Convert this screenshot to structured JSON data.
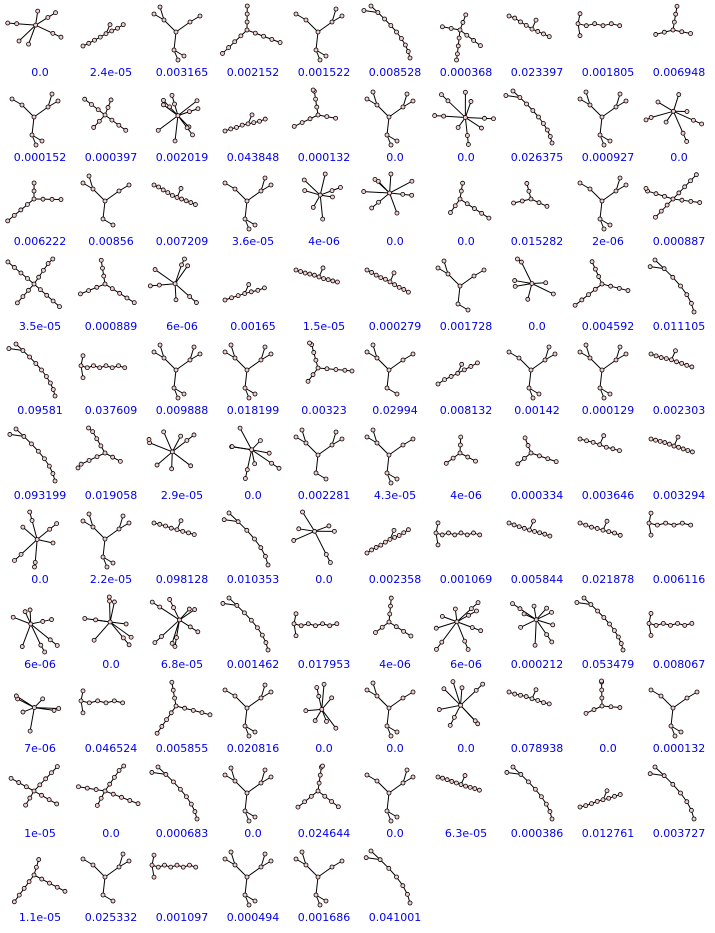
{
  "colors": {
    "label": "#0000ee",
    "node_fill": "#f4cccc",
    "edge": "#000000"
  },
  "cells": [
    {
      "label": "0.0",
      "shape": "star"
    },
    {
      "label": "2.4e-05",
      "shape": "path"
    },
    {
      "label": "0.003165",
      "shape": "tree"
    },
    {
      "label": "0.002152",
      "shape": "branch"
    },
    {
      "label": "0.001522",
      "shape": "tree"
    },
    {
      "label": "0.008528",
      "shape": "curve"
    },
    {
      "label": "0.000368",
      "shape": "branch"
    },
    {
      "label": "0.023397",
      "shape": "path"
    },
    {
      "label": "0.001805",
      "shape": "ladder"
    },
    {
      "label": "0.006948",
      "shape": "branch"
    },
    {
      "label": "0.000152",
      "shape": "tree"
    },
    {
      "label": "0.000397",
      "shape": "branch"
    },
    {
      "label": "0.002019",
      "shape": "star"
    },
    {
      "label": "0.043848",
      "shape": "path"
    },
    {
      "label": "0.000132",
      "shape": "branch"
    },
    {
      "label": "0.0",
      "shape": "tree"
    },
    {
      "label": "0.0",
      "shape": "star"
    },
    {
      "label": "0.026375",
      "shape": "curve"
    },
    {
      "label": "0.000927",
      "shape": "tree"
    },
    {
      "label": "0.0",
      "shape": "star"
    },
    {
      "label": "0.006222",
      "shape": "branch"
    },
    {
      "label": "0.00856",
      "shape": "tree"
    },
    {
      "label": "0.007209",
      "shape": "path"
    },
    {
      "label": "3.6e-05",
      "shape": "tree"
    },
    {
      "label": "4e-06",
      "shape": "star"
    },
    {
      "label": "0.0",
      "shape": "star"
    },
    {
      "label": "0.0",
      "shape": "branch"
    },
    {
      "label": "0.015282",
      "shape": "branch"
    },
    {
      "label": "2e-06",
      "shape": "tree"
    },
    {
      "label": "0.000887",
      "shape": "branch"
    },
    {
      "label": "3.5e-05",
      "shape": "branch"
    },
    {
      "label": "0.000889",
      "shape": "branch"
    },
    {
      "label": "6e-06",
      "shape": "star"
    },
    {
      "label": "0.00165",
      "shape": "path"
    },
    {
      "label": "1.5e-05",
      "shape": "path"
    },
    {
      "label": "0.000279",
      "shape": "path"
    },
    {
      "label": "0.001728",
      "shape": "tree"
    },
    {
      "label": "0.0",
      "shape": "star"
    },
    {
      "label": "0.004592",
      "shape": "branch"
    },
    {
      "label": "0.011105",
      "shape": "curve"
    },
    {
      "label": "0.09581",
      "shape": "curve"
    },
    {
      "label": "0.037609",
      "shape": "ladder"
    },
    {
      "label": "0.009888",
      "shape": "tree"
    },
    {
      "label": "0.018199",
      "shape": "tree"
    },
    {
      "label": "0.00323",
      "shape": "branch"
    },
    {
      "label": "0.02994",
      "shape": "tree"
    },
    {
      "label": "0.008132",
      "shape": "path"
    },
    {
      "label": "0.00142",
      "shape": "tree"
    },
    {
      "label": "0.000129",
      "shape": "tree"
    },
    {
      "label": "0.002303",
      "shape": "path"
    },
    {
      "label": "0.093199",
      "shape": "curve"
    },
    {
      "label": "0.019058",
      "shape": "branch"
    },
    {
      "label": "2.9e-05",
      "shape": "star"
    },
    {
      "label": "0.0",
      "shape": "star"
    },
    {
      "label": "0.002281",
      "shape": "tree"
    },
    {
      "label": "4.3e-05",
      "shape": "tree"
    },
    {
      "label": "4e-06",
      "shape": "branch"
    },
    {
      "label": "0.000334",
      "shape": "branch"
    },
    {
      "label": "0.003646",
      "shape": "path"
    },
    {
      "label": "0.003294",
      "shape": "path"
    },
    {
      "label": "0.0",
      "shape": "star"
    },
    {
      "label": "2.2e-05",
      "shape": "tree"
    },
    {
      "label": "0.098128",
      "shape": "path"
    },
    {
      "label": "0.010353",
      "shape": "curve"
    },
    {
      "label": "0.0",
      "shape": "star"
    },
    {
      "label": "0.002358",
      "shape": "path"
    },
    {
      "label": "0.001069",
      "shape": "ladder"
    },
    {
      "label": "0.005844",
      "shape": "path"
    },
    {
      "label": "0.021878",
      "shape": "path"
    },
    {
      "label": "0.006116",
      "shape": "ladder"
    },
    {
      "label": "6e-06",
      "shape": "star"
    },
    {
      "label": "0.0",
      "shape": "star"
    },
    {
      "label": "6.8e-05",
      "shape": "star"
    },
    {
      "label": "0.001462",
      "shape": "curve"
    },
    {
      "label": "0.017953",
      "shape": "ladder"
    },
    {
      "label": "4e-06",
      "shape": "branch"
    },
    {
      "label": "6e-06",
      "shape": "star"
    },
    {
      "label": "0.000212",
      "shape": "star"
    },
    {
      "label": "0.053479",
      "shape": "curve"
    },
    {
      "label": "0.008067",
      "shape": "ladder"
    },
    {
      "label": "7e-06",
      "shape": "star"
    },
    {
      "label": "0.046524",
      "shape": "ladder"
    },
    {
      "label": "0.005855",
      "shape": "branch"
    },
    {
      "label": "0.020816",
      "shape": "tree"
    },
    {
      "label": "0.0",
      "shape": "star"
    },
    {
      "label": "0.0",
      "shape": "tree"
    },
    {
      "label": "0.0",
      "shape": "star"
    },
    {
      "label": "0.078938",
      "shape": "path"
    },
    {
      "label": "0.0",
      "shape": "branch"
    },
    {
      "label": "0.000132",
      "shape": "tree"
    },
    {
      "label": "1e-05",
      "shape": "branch"
    },
    {
      "label": "0.0",
      "shape": "branch"
    },
    {
      "label": "0.000683",
      "shape": "curve"
    },
    {
      "label": "0.0",
      "shape": "tree"
    },
    {
      "label": "0.024644",
      "shape": "branch"
    },
    {
      "label": "0.0",
      "shape": "tree"
    },
    {
      "label": "6.3e-05",
      "shape": "path"
    },
    {
      "label": "0.000386",
      "shape": "curve"
    },
    {
      "label": "0.012761",
      "shape": "path"
    },
    {
      "label": "0.003727",
      "shape": "curve"
    },
    {
      "label": "1.1e-05",
      "shape": "branch"
    },
    {
      "label": "0.025332",
      "shape": "tree"
    },
    {
      "label": "0.001097",
      "shape": "ladder"
    },
    {
      "label": "0.000494",
      "shape": "tree"
    },
    {
      "label": "0.001686",
      "shape": "tree"
    },
    {
      "label": "0.041001",
      "shape": "curve"
    }
  ]
}
